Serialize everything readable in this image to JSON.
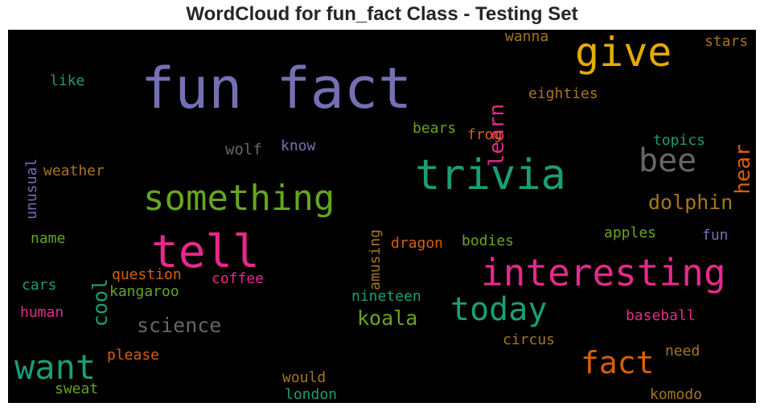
{
  "title": "WordCloud for fun_fact Class - Testing Set",
  "background": "#000000",
  "words": [
    {
      "text": "fun fact",
      "color": "#7570b3"
    },
    {
      "text": "give",
      "color": "#e6ab02"
    },
    {
      "text": "trivia",
      "color": "#1b9e77"
    },
    {
      "text": "something",
      "color": "#66a61e"
    },
    {
      "text": "tell",
      "color": "#e7298a"
    },
    {
      "text": "interesting",
      "color": "#e7298a"
    },
    {
      "text": "bee",
      "color": "#666666"
    },
    {
      "text": "today",
      "color": "#1b9e77"
    },
    {
      "text": "want",
      "color": "#1b9e77"
    },
    {
      "text": "fact",
      "color": "#d95f02"
    },
    {
      "text": "learn",
      "color": "#e7298a"
    },
    {
      "text": "hear",
      "color": "#d95f02"
    },
    {
      "text": "dolphin",
      "color": "#a6761d"
    },
    {
      "text": "science",
      "color": "#666666"
    },
    {
      "text": "koala",
      "color": "#66a61e"
    },
    {
      "text": "cool",
      "color": "#1b9e77"
    },
    {
      "text": "unusual",
      "color": "#7570b3"
    },
    {
      "text": "amusing",
      "color": "#a6761d"
    },
    {
      "text": "wanna",
      "color": "#a6761d"
    },
    {
      "text": "stars",
      "color": "#a6761d"
    },
    {
      "text": "like",
      "color": "#1b9e77"
    },
    {
      "text": "eighties",
      "color": "#a6761d"
    },
    {
      "text": "bears",
      "color": "#66a61e"
    },
    {
      "text": "frog",
      "color": "#d95f02"
    },
    {
      "text": "topics",
      "color": "#1b9e77"
    },
    {
      "text": "wolf",
      "color": "#666666"
    },
    {
      "text": "know",
      "color": "#7570b3"
    },
    {
      "text": "weather",
      "color": "#a6761d"
    },
    {
      "text": "name",
      "color": "#66a61e"
    },
    {
      "text": "dragon",
      "color": "#d95f02"
    },
    {
      "text": "bodies",
      "color": "#66a61e"
    },
    {
      "text": "apples",
      "color": "#66a61e"
    },
    {
      "text": "fun",
      "color": "#7570b3"
    },
    {
      "text": "question",
      "color": "#d95f02"
    },
    {
      "text": "coffee",
      "color": "#e7298a"
    },
    {
      "text": "cars",
      "color": "#1b9e77"
    },
    {
      "text": "kangaroo",
      "color": "#66a61e"
    },
    {
      "text": "nineteen",
      "color": "#1b9e77"
    },
    {
      "text": "human",
      "color": "#e7298a"
    },
    {
      "text": "baseball",
      "color": "#e7298a"
    },
    {
      "text": "circus",
      "color": "#a6761d"
    },
    {
      "text": "please",
      "color": "#d95f02"
    },
    {
      "text": "need",
      "color": "#a6761d"
    },
    {
      "text": "would",
      "color": "#a6761d"
    },
    {
      "text": "sweat",
      "color": "#66a61e"
    },
    {
      "text": "london",
      "color": "#1b9e77"
    },
    {
      "text": "komodo",
      "color": "#a6761d"
    }
  ]
}
